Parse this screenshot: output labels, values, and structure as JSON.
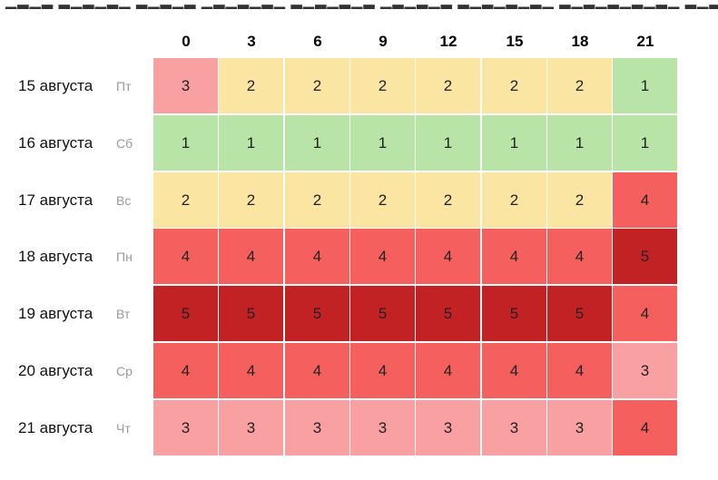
{
  "colors": {
    "1": "#b8e4a8",
    "2": "#fae6a2",
    "3": "#f9a1a2",
    "4": "#f5605f",
    "5": "#c22224"
  },
  "chart_data": {
    "type": "heatmap",
    "title": "",
    "xlabel": "",
    "ylabel": "",
    "columns": [
      "0",
      "3",
      "6",
      "9",
      "12",
      "15",
      "18",
      "21"
    ],
    "rows": [
      {
        "date": "15 августа",
        "dow": "Пт",
        "values": [
          3,
          2,
          2,
          2,
          2,
          2,
          2,
          1
        ]
      },
      {
        "date": "16 августа",
        "dow": "Сб",
        "values": [
          1,
          1,
          1,
          1,
          1,
          1,
          1,
          1
        ]
      },
      {
        "date": "17 августа",
        "dow": "Вс",
        "values": [
          2,
          2,
          2,
          2,
          2,
          2,
          2,
          4
        ]
      },
      {
        "date": "18 августа",
        "dow": "Пн",
        "values": [
          4,
          4,
          4,
          4,
          4,
          4,
          4,
          5
        ]
      },
      {
        "date": "19 августа",
        "dow": "Вт",
        "values": [
          5,
          5,
          5,
          5,
          5,
          5,
          5,
          4
        ]
      },
      {
        "date": "20 августа",
        "dow": "Ср",
        "values": [
          4,
          4,
          4,
          4,
          4,
          4,
          4,
          3
        ]
      },
      {
        "date": "21 августа",
        "dow": "Чт",
        "values": [
          3,
          3,
          3,
          3,
          3,
          3,
          3,
          4
        ]
      }
    ]
  }
}
